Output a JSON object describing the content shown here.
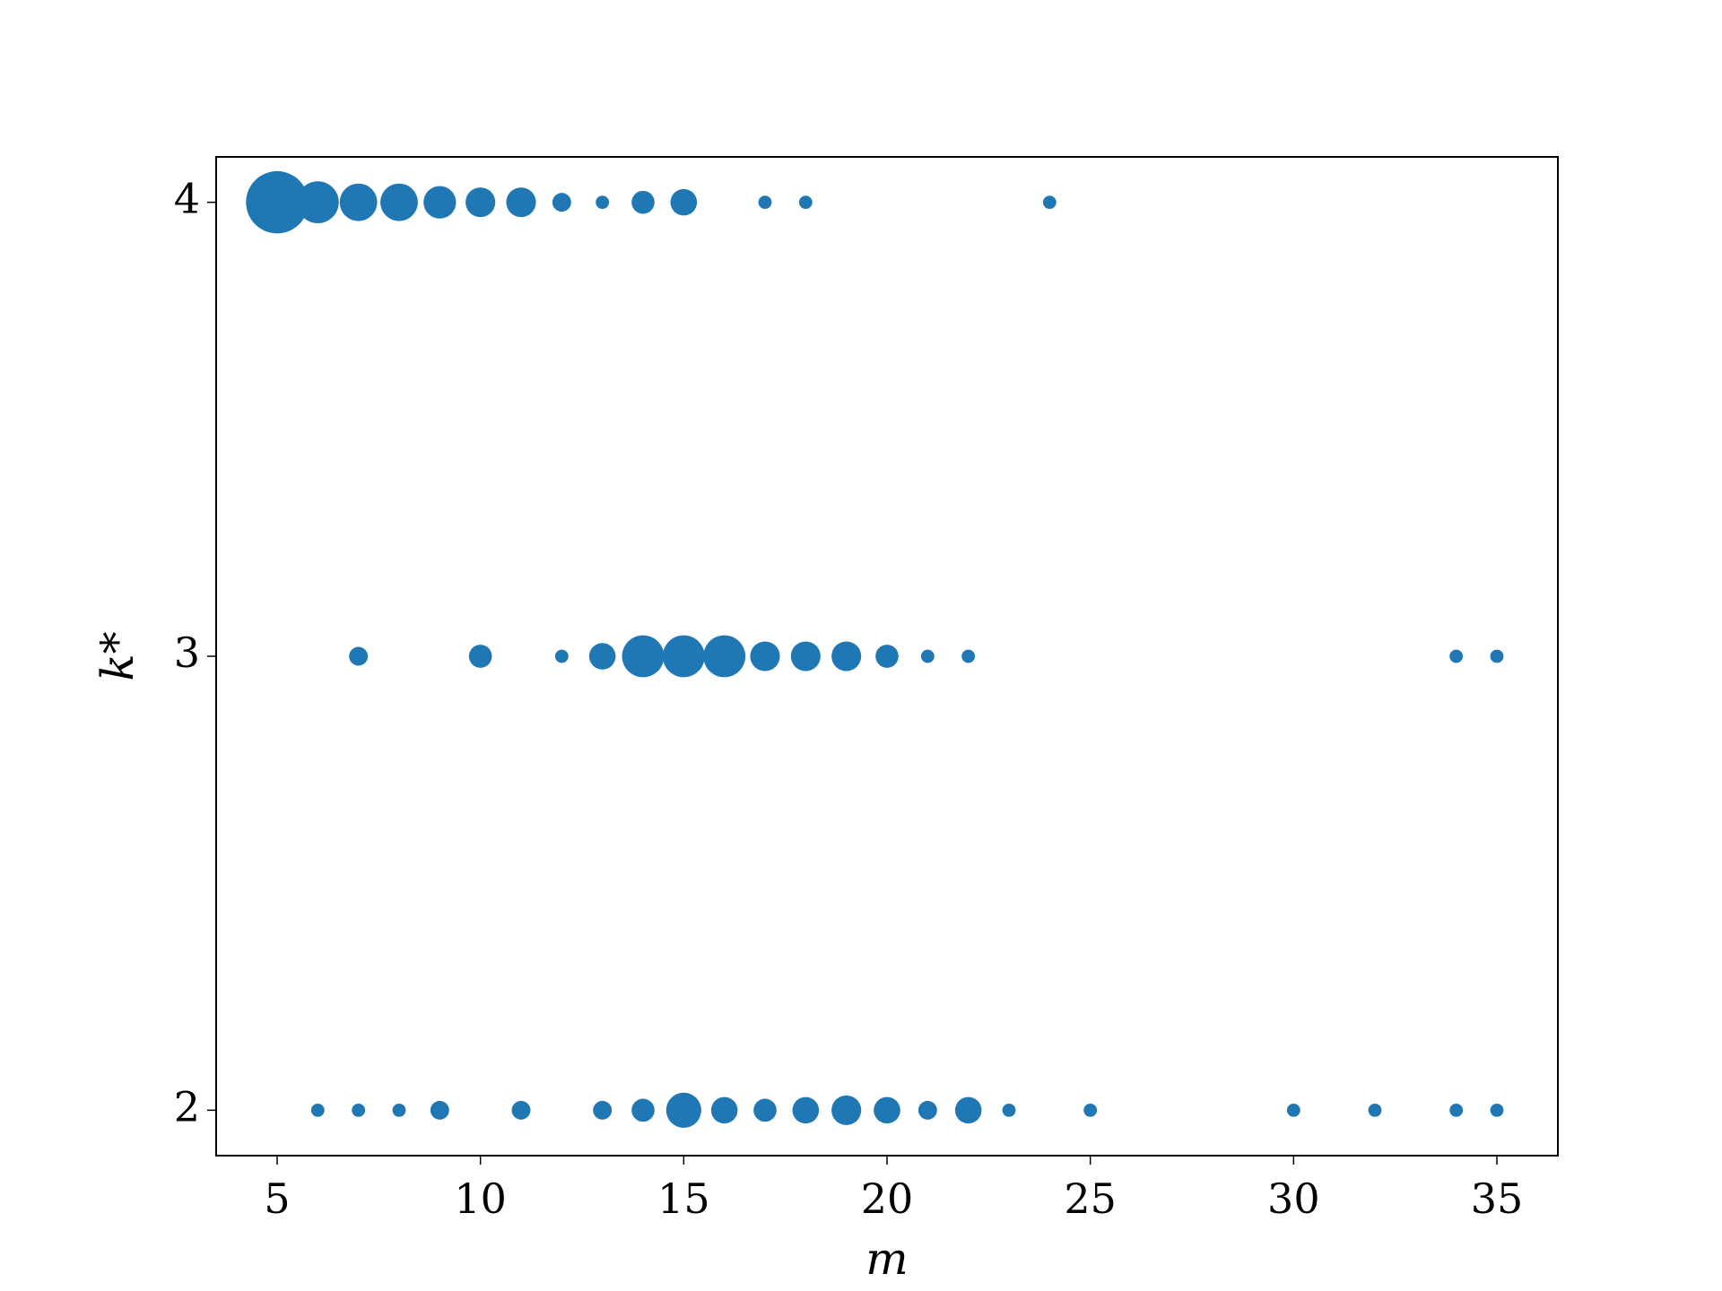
{
  "chart_data": {
    "type": "scatter",
    "x_label": "m",
    "y_label": "k*",
    "xlim": [
      3.5,
      36.5
    ],
    "ylim": [
      1.9,
      4.1
    ],
    "xticks": [
      5,
      10,
      15,
      20,
      25,
      30,
      35
    ],
    "yticks": [
      2,
      3,
      4
    ],
    "grid": false,
    "series": [
      {
        "color": "#1f77b4",
        "x": [
          5,
          6,
          7,
          8,
          9,
          10,
          11,
          12,
          13,
          14,
          15,
          17,
          18,
          24,
          7,
          10,
          12,
          13,
          14,
          15,
          16,
          17,
          18,
          19,
          20,
          21,
          22,
          34,
          35,
          6,
          7,
          8,
          9,
          11,
          13,
          14,
          15,
          16,
          17,
          18,
          19,
          20,
          21,
          22,
          23,
          25,
          30,
          32,
          34,
          35
        ],
        "values": [
          4,
          4,
          4,
          4,
          4,
          4,
          4,
          4,
          4,
          4,
          4,
          4,
          4,
          4,
          3,
          3,
          3,
          3,
          3,
          3,
          3,
          3,
          3,
          3,
          3,
          3,
          3,
          3,
          3,
          2,
          2,
          2,
          2,
          2,
          2,
          2,
          2,
          2,
          2,
          2,
          2,
          2,
          2,
          2,
          2,
          2,
          2,
          2,
          2,
          2
        ],
        "sizes": [
          22,
          10,
          8,
          8,
          6,
          5,
          5,
          2,
          1,
          3,
          4,
          1,
          1,
          1,
          2,
          3,
          1,
          4,
          10,
          10,
          10,
          5,
          5,
          5,
          3,
          1,
          1,
          1,
          1,
          1,
          1,
          1,
          2,
          2,
          2,
          3,
          7,
          4,
          3,
          4,
          5,
          4,
          2,
          4,
          1,
          1,
          1,
          1,
          1,
          1
        ]
      }
    ]
  }
}
